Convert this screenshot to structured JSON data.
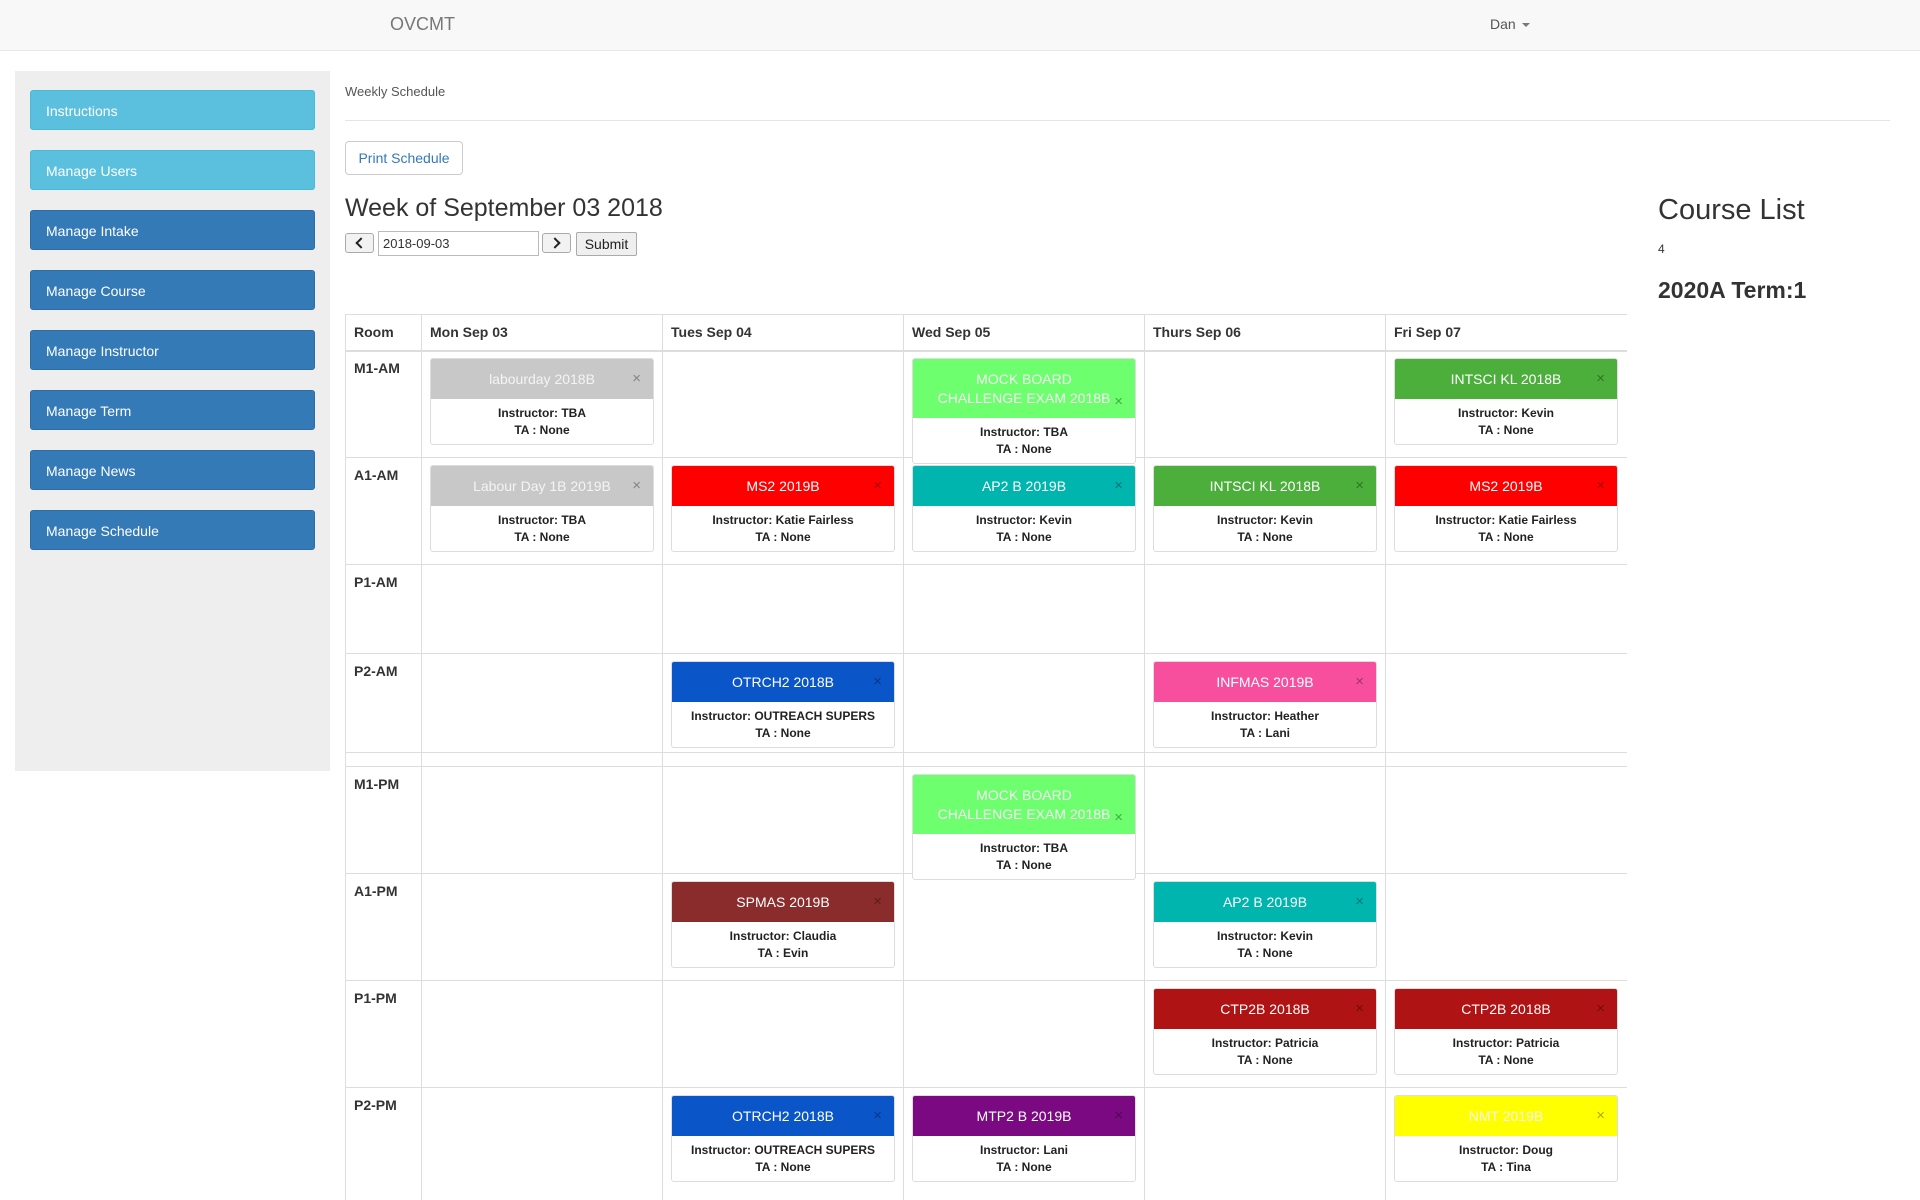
{
  "navbar": {
    "brand": "OVCMT",
    "user": "Dan"
  },
  "sidebar": {
    "items": [
      {
        "label": "Instructions",
        "style": "light"
      },
      {
        "label": "Manage Users",
        "style": "light"
      },
      {
        "label": "Manage Intake",
        "style": "dark"
      },
      {
        "label": "Manage Course",
        "style": "dark"
      },
      {
        "label": "Manage Instructor",
        "style": "dark"
      },
      {
        "label": "Manage Term",
        "style": "dark"
      },
      {
        "label": "Manage News",
        "style": "dark"
      },
      {
        "label": "Manage Schedule",
        "style": "dark"
      }
    ]
  },
  "main": {
    "breadcrumb": "Weekly Schedule",
    "print_label": "Print Schedule",
    "week_title": "Week of September 03 2018",
    "date_value": "2018-09-03",
    "submit_label": "Submit"
  },
  "schedule": {
    "room_header": "Room",
    "days": [
      "Mon Sep 03",
      "Tues Sep 04",
      "Wed Sep 05",
      "Thurs Sep 06",
      "Fri Sep 07"
    ],
    "rooms": [
      "M1-AM",
      "A1-AM",
      "P1-AM",
      "P2-AM",
      "M1-PM",
      "A1-PM",
      "P1-PM",
      "P2-PM"
    ],
    "close_symbol": "×",
    "entries": [
      {
        "room": 0,
        "day": 0,
        "title": "labourday 2018B",
        "instructor": "Instructor: TBA",
        "ta": "TA : None",
        "color": "#c8c8c8"
      },
      {
        "room": 0,
        "day": 2,
        "title": "MOCK BOARD CHALLENGE EXAM 2018B",
        "instructor": "Instructor: TBA",
        "ta": "TA : None",
        "color": "#6eff6e"
      },
      {
        "room": 0,
        "day": 4,
        "title": "INTSCI KL 2018B",
        "instructor": "Instructor: Kevin",
        "ta": "TA : None",
        "color": "#4caf3c"
      },
      {
        "room": 1,
        "day": 0,
        "title": "Labour Day 1B 2019B",
        "instructor": "Instructor: TBA",
        "ta": "TA : None",
        "color": "#c8c8c8"
      },
      {
        "room": 1,
        "day": 1,
        "title": "MS2 2019B",
        "instructor": "Instructor: Katie Fairless",
        "ta": "TA : None",
        "color": "#ff0000"
      },
      {
        "room": 1,
        "day": 2,
        "title": "AP2 B 2019B",
        "instructor": "Instructor: Kevin",
        "ta": "TA : None",
        "color": "#00b5ad"
      },
      {
        "room": 1,
        "day": 3,
        "title": "INTSCI KL 2018B",
        "instructor": "Instructor: Kevin",
        "ta": "TA : None",
        "color": "#4caf3c"
      },
      {
        "room": 1,
        "day": 4,
        "title": "MS2 2019B",
        "instructor": "Instructor: Katie Fairless",
        "ta": "TA : None",
        "color": "#ff0000"
      },
      {
        "room": 3,
        "day": 1,
        "title": "OTRCH2 2018B",
        "instructor": "Instructor: OUTREACH SUPERS",
        "ta": "TA : None",
        "color": "#0a55c8"
      },
      {
        "room": 3,
        "day": 3,
        "title": "INFMAS 2019B",
        "instructor": "Instructor: Heather",
        "ta": "TA : Lani",
        "color": "#f74f9e"
      },
      {
        "room": 4,
        "day": 2,
        "title": "MOCK BOARD CHALLENGE EXAM 2018B",
        "instructor": "Instructor: TBA",
        "ta": "TA : None",
        "color": "#6eff6e"
      },
      {
        "room": 5,
        "day": 1,
        "title": "SPMAS 2019B",
        "instructor": "Instructor: Claudia",
        "ta": "TA : Evin",
        "color": "#8b2c2c"
      },
      {
        "room": 5,
        "day": 3,
        "title": "AP2 B 2019B",
        "instructor": "Instructor: Kevin",
        "ta": "TA : None",
        "color": "#00b5ad"
      },
      {
        "room": 6,
        "day": 3,
        "title": "CTP2B 2018B",
        "instructor": "Instructor: Patricia",
        "ta": "TA : None",
        "color": "#b01313"
      },
      {
        "room": 6,
        "day": 4,
        "title": "CTP2B 2018B",
        "instructor": "Instructor: Patricia",
        "ta": "TA : None",
        "color": "#b01313"
      },
      {
        "room": 7,
        "day": 1,
        "title": "OTRCH2 2018B",
        "instructor": "Instructor: OUTREACH SUPERS",
        "ta": "TA : None",
        "color": "#0a55c8"
      },
      {
        "room": 7,
        "day": 2,
        "title": "MTP2 B 2019B",
        "instructor": "Instructor: Lani",
        "ta": "TA : None",
        "color": "#7b0a82"
      },
      {
        "room": 7,
        "day": 4,
        "title": "NMT 2019B",
        "instructor": "Instructor: Doug",
        "ta": "TA : Tina",
        "color": "#ffff00"
      }
    ]
  },
  "course_list": {
    "title": "Course List",
    "count": "4",
    "term": "2020A Term:1"
  }
}
